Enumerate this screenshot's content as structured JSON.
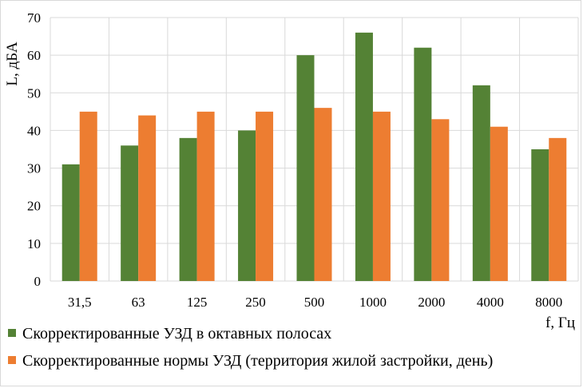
{
  "chart_data": {
    "type": "bar",
    "categories": [
      "31,5",
      "63",
      "125",
      "250",
      "500",
      "1000",
      "2000",
      "4000",
      "8000"
    ],
    "series": [
      {
        "name": "Скорректированные УЗД в октавных полосах",
        "color": "#548235",
        "values": [
          31,
          36,
          38,
          40,
          60,
          66,
          62,
          52,
          35
        ]
      },
      {
        "name": "Скорректированные нормы УЗД (территория жилой застройки, день)",
        "color": "#ed7d31",
        "values": [
          45,
          44,
          45,
          45,
          46,
          45,
          43,
          41,
          38
        ]
      }
    ],
    "xlabel": "f, Гц",
    "ylabel": "L, дБА",
    "ylim": [
      0,
      70
    ],
    "yticks": [
      0,
      10,
      20,
      30,
      40,
      50,
      60,
      70
    ],
    "grid": true,
    "legend_position": "bottom-left"
  }
}
